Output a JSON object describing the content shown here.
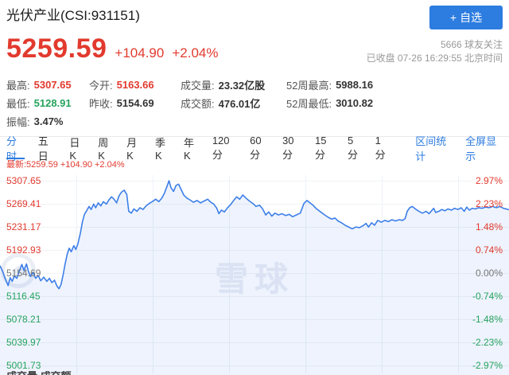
{
  "colors": {
    "up": "#e23a2e",
    "down": "#26a35e",
    "flat": "#777777",
    "accent": "#2d7ce0",
    "line": "#3d7fe8",
    "fill_opacity": "0.09"
  },
  "header": {
    "title": "光伏产业(CSI:931151)",
    "watchlist_button": {
      "icon": "+",
      "label": "自选"
    },
    "price": "5259.59",
    "change": "+104.90",
    "change_percent": "+2.04%",
    "followers": "5666 球友关注",
    "market_status": "已收盘 07-26 16:29:55 北京时间"
  },
  "stats": {
    "columns": [
      [
        {
          "label": "最高:",
          "value": "5307.65",
          "tone": "up"
        },
        {
          "label": "最低:",
          "value": "5128.91",
          "tone": "down"
        },
        {
          "label": "振幅:",
          "value": "3.47%",
          "tone": "dark"
        }
      ],
      [
        {
          "label": "今开:",
          "value": "5163.66",
          "tone": "up"
        },
        {
          "label": "昨收:",
          "value": "5154.69",
          "tone": "dark"
        }
      ],
      [
        {
          "label": "成交量:",
          "value": "23.32亿股",
          "tone": "dark"
        },
        {
          "label": "成交额:",
          "value": "476.01亿",
          "tone": "dark"
        }
      ],
      [
        {
          "label": "52周最高:",
          "value": "5988.16",
          "tone": "dark"
        },
        {
          "label": "52周最低:",
          "value": "3010.82",
          "tone": "dark"
        }
      ]
    ]
  },
  "tabs": {
    "items": [
      "分时",
      "五日",
      "日K",
      "周K",
      "月K",
      "季K",
      "年K",
      "120分",
      "60分",
      "30分",
      "15分",
      "5分",
      "1分"
    ],
    "active_index": 0,
    "links": [
      "区间统计",
      "全屏显示"
    ]
  },
  "watermark": "雪球",
  "footer": {
    "clipped_text": "成交量 成交额"
  },
  "chart_data": {
    "type": "line",
    "title": "分时 (intraday time-share)",
    "latest_label": "最新:5259.59 +104.90 +2.04%",
    "prev_close": 5154.69,
    "open": 5163.66,
    "high": 5307.65,
    "low": 5128.91,
    "close": 5259.59,
    "ylim": [
      5001.73,
      5307.65
    ],
    "grid": true,
    "y_axis": [
      {
        "left": "5307.65",
        "right": "2.97%",
        "tone": "up"
      },
      {
        "left": "5269.41",
        "right": "2.23%",
        "tone": "up"
      },
      {
        "left": "5231.17",
        "right": "1.48%",
        "tone": "up"
      },
      {
        "left": "5192.93",
        "right": "0.74%",
        "tone": "up"
      },
      {
        "left": "5154.69",
        "right": "0.00%",
        "tone": "flat"
      },
      {
        "left": "5116.45",
        "right": "-0.74%",
        "tone": "down"
      },
      {
        "left": "5078.21",
        "right": "-1.48%",
        "tone": "down"
      },
      {
        "left": "5039.97",
        "right": "-2.23%",
        "tone": "down"
      },
      {
        "left": "5001.73",
        "right": "-2.97%",
        "tone": "down"
      }
    ],
    "x_gridlines": [
      0.15,
      0.3,
      0.45,
      0.6,
      0.75,
      0.9
    ],
    "points": [
      [
        0,
        5167
      ],
      [
        0.005,
        5158
      ],
      [
        0.01,
        5146
      ],
      [
        0.016,
        5134
      ],
      [
        0.02,
        5147
      ],
      [
        0.024,
        5141
      ],
      [
        0.028,
        5150
      ],
      [
        0.033,
        5146
      ],
      [
        0.038,
        5158
      ],
      [
        0.043,
        5169
      ],
      [
        0.047,
        5159
      ],
      [
        0.052,
        5170
      ],
      [
        0.056,
        5157
      ],
      [
        0.06,
        5149
      ],
      [
        0.065,
        5156
      ],
      [
        0.07,
        5146
      ],
      [
        0.075,
        5151
      ],
      [
        0.08,
        5142
      ],
      [
        0.086,
        5148
      ],
      [
        0.092,
        5141
      ],
      [
        0.097,
        5146
      ],
      [
        0.102,
        5139
      ],
      [
        0.107,
        5143
      ],
      [
        0.112,
        5133
      ],
      [
        0.116,
        5128.91
      ],
      [
        0.12,
        5136
      ],
      [
        0.124,
        5152
      ],
      [
        0.128,
        5170
      ],
      [
        0.132,
        5186
      ],
      [
        0.136,
        5196
      ],
      [
        0.14,
        5190
      ],
      [
        0.145,
        5200
      ],
      [
        0.149,
        5194
      ],
      [
        0.153,
        5203
      ],
      [
        0.158,
        5221
      ],
      [
        0.162,
        5240
      ],
      [
        0.166,
        5252
      ],
      [
        0.171,
        5259
      ],
      [
        0.175,
        5265
      ],
      [
        0.179,
        5260
      ],
      [
        0.184,
        5269
      ],
      [
        0.188,
        5263
      ],
      [
        0.193,
        5271
      ],
      [
        0.198,
        5266
      ],
      [
        0.203,
        5273
      ],
      [
        0.209,
        5269
      ],
      [
        0.214,
        5276
      ],
      [
        0.219,
        5281
      ],
      [
        0.224,
        5277
      ],
      [
        0.229,
        5271
      ],
      [
        0.234,
        5283
      ],
      [
        0.239,
        5289
      ],
      [
        0.244,
        5292
      ],
      [
        0.249,
        5285
      ],
      [
        0.253,
        5257
      ],
      [
        0.258,
        5254
      ],
      [
        0.263,
        5261
      ],
      [
        0.269,
        5257
      ],
      [
        0.275,
        5263
      ],
      [
        0.281,
        5260
      ],
      [
        0.287,
        5266
      ],
      [
        0.293,
        5270
      ],
      [
        0.299,
        5273
      ],
      [
        0.306,
        5277
      ],
      [
        0.312,
        5273
      ],
      [
        0.318,
        5279
      ],
      [
        0.323,
        5287
      ],
      [
        0.328,
        5298
      ],
      [
        0.332,
        5307.65
      ],
      [
        0.336,
        5296
      ],
      [
        0.341,
        5290
      ],
      [
        0.346,
        5300
      ],
      [
        0.351,
        5302
      ],
      [
        0.356,
        5293
      ],
      [
        0.361,
        5284
      ],
      [
        0.367,
        5279
      ],
      [
        0.373,
        5276
      ],
      [
        0.38,
        5272
      ],
      [
        0.387,
        5275
      ],
      [
        0.394,
        5271
      ],
      [
        0.401,
        5274
      ],
      [
        0.408,
        5277
      ],
      [
        0.414,
        5272
      ],
      [
        0.42,
        5269
      ],
      [
        0.426,
        5262
      ],
      [
        0.43,
        5253
      ],
      [
        0.435,
        5259
      ],
      [
        0.441,
        5256
      ],
      [
        0.447,
        5263
      ],
      [
        0.453,
        5268
      ],
      [
        0.459,
        5275
      ],
      [
        0.465,
        5281
      ],
      [
        0.471,
        5277
      ],
      [
        0.477,
        5284
      ],
      [
        0.483,
        5279
      ],
      [
        0.49,
        5274
      ],
      [
        0.497,
        5270
      ],
      [
        0.503,
        5265
      ],
      [
        0.51,
        5267
      ],
      [
        0.516,
        5261
      ],
      [
        0.522,
        5251
      ],
      [
        0.528,
        5256
      ],
      [
        0.534,
        5249
      ],
      [
        0.54,
        5254
      ],
      [
        0.547,
        5251
      ],
      [
        0.554,
        5253
      ],
      [
        0.561,
        5250
      ],
      [
        0.568,
        5252
      ],
      [
        0.575,
        5248
      ],
      [
        0.582,
        5251
      ],
      [
        0.59,
        5254
      ],
      [
        0.597,
        5270
      ],
      [
        0.603,
        5275
      ],
      [
        0.609,
        5271
      ],
      [
        0.615,
        5267
      ],
      [
        0.622,
        5261
      ],
      [
        0.63,
        5256
      ],
      [
        0.638,
        5251
      ],
      [
        0.645,
        5247
      ],
      [
        0.652,
        5244
      ],
      [
        0.658,
        5246
      ],
      [
        0.664,
        5241
      ],
      [
        0.671,
        5238
      ],
      [
        0.678,
        5234
      ],
      [
        0.685,
        5231
      ],
      [
        0.692,
        5228
      ],
      [
        0.699,
        5231
      ],
      [
        0.706,
        5230
      ],
      [
        0.713,
        5233
      ],
      [
        0.719,
        5237
      ],
      [
        0.724,
        5231
      ],
      [
        0.73,
        5238
      ],
      [
        0.736,
        5234
      ],
      [
        0.742,
        5242
      ],
      [
        0.749,
        5239
      ],
      [
        0.756,
        5242
      ],
      [
        0.763,
        5240
      ],
      [
        0.77,
        5243
      ],
      [
        0.777,
        5241
      ],
      [
        0.784,
        5243
      ],
      [
        0.791,
        5242
      ],
      [
        0.796,
        5245
      ],
      [
        0.8,
        5257
      ],
      [
        0.805,
        5263
      ],
      [
        0.81,
        5265
      ],
      [
        0.816,
        5261
      ],
      [
        0.823,
        5257
      ],
      [
        0.83,
        5254
      ],
      [
        0.837,
        5257
      ],
      [
        0.843,
        5253
      ],
      [
        0.848,
        5258
      ],
      [
        0.852,
        5262
      ],
      [
        0.856,
        5255
      ],
      [
        0.862,
        5257
      ],
      [
        0.868,
        5260
      ],
      [
        0.874,
        5258
      ],
      [
        0.88,
        5261
      ],
      [
        0.887,
        5259
      ],
      [
        0.893,
        5262
      ],
      [
        0.9,
        5260
      ],
      [
        0.906,
        5263
      ],
      [
        0.912,
        5257
      ],
      [
        0.917,
        5264
      ],
      [
        0.922,
        5259
      ],
      [
        0.928,
        5262
      ],
      [
        0.934,
        5261
      ],
      [
        0.94,
        5263
      ],
      [
        0.947,
        5262
      ],
      [
        0.954,
        5264
      ],
      [
        0.961,
        5263
      ],
      [
        0.968,
        5265
      ],
      [
        0.975,
        5263
      ],
      [
        0.982,
        5265
      ],
      [
        0.989,
        5262
      ],
      [
        1,
        5259.59
      ]
    ]
  }
}
